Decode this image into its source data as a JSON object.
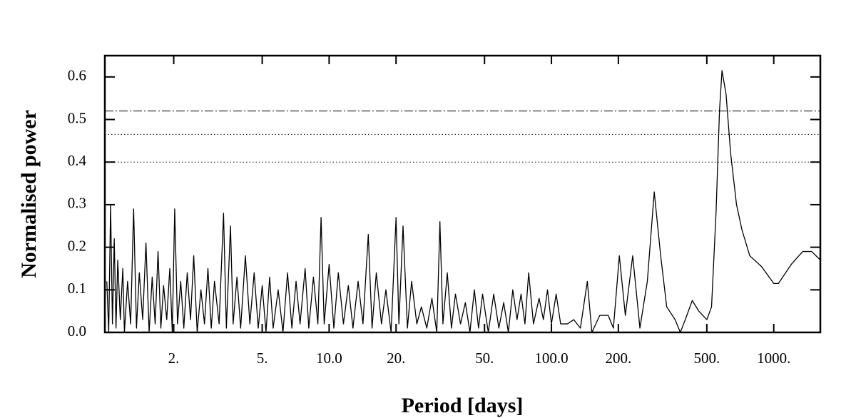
{
  "chart_data": {
    "type": "line",
    "x_label": "Period [days]",
    "y_label": "Normalised power",
    "log_x": true,
    "xlim": [
      0.98,
      1620
    ],
    "ylim": [
      0,
      0.65
    ],
    "xticks": [
      {
        "value": 2,
        "label": "2."
      },
      {
        "value": 5,
        "label": "5."
      },
      {
        "value": 10,
        "label": "10.0"
      },
      {
        "value": 20,
        "label": "20."
      },
      {
        "value": 50,
        "label": "50."
      },
      {
        "value": 100,
        "label": "100.0"
      },
      {
        "value": 200,
        "label": "200."
      },
      {
        "value": 500,
        "label": "500."
      },
      {
        "value": 1000,
        "label": "1000."
      }
    ],
    "yticks": [
      {
        "value": 0,
        "label": "0.0"
      },
      0.1,
      0.2,
      0.3,
      0.4,
      0.5,
      0.6
    ],
    "reference_lines": [
      {
        "value": 0.52,
        "style": "dashdot"
      },
      {
        "value": 0.465,
        "style": "dotted"
      },
      {
        "value": 0.4,
        "style": "dotted"
      }
    ],
    "color": "#000000",
    "x": [
      1.0,
      1.02,
      1.04,
      1.06,
      1.08,
      1.1,
      1.12,
      1.15,
      1.18,
      1.2,
      1.24,
      1.28,
      1.32,
      1.36,
      1.4,
      1.45,
      1.5,
      1.55,
      1.6,
      1.65,
      1.7,
      1.75,
      1.8,
      1.86,
      1.92,
      1.97,
      2.02,
      2.08,
      2.15,
      2.22,
      2.3,
      2.38,
      2.46,
      2.55,
      2.65,
      2.75,
      2.85,
      2.95,
      3.05,
      3.2,
      3.35,
      3.45,
      3.6,
      3.7,
      3.85,
      4.0,
      4.2,
      4.4,
      4.6,
      4.8,
      5.0,
      5.2,
      5.4,
      5.6,
      5.9,
      6.2,
      6.5,
      6.8,
      7.1,
      7.4,
      7.8,
      8.1,
      8.5,
      8.9,
      9.2,
      9.5,
      10.0,
      10.5,
      11.0,
      11.6,
      12.2,
      12.8,
      13.5,
      14.2,
      15.0,
      15.6,
      16.3,
      17.2,
      18.0,
      19.0,
      20.0,
      20.6,
      21.5,
      22.5,
      23.5,
      24.8,
      26.0,
      27.5,
      29.0,
      30.5,
      31.5,
      32.5,
      34.0,
      35.5,
      37.0,
      39.0,
      41.0,
      43.0,
      45.0,
      47.0,
      49,
      52,
      55,
      58,
      61,
      64,
      67,
      70,
      73,
      76,
      79,
      83,
      88,
      92,
      96,
      100,
      105,
      110,
      118,
      126,
      135,
      145,
      152,
      165,
      180,
      190,
      202,
      215,
      232,
      250,
      270,
      290,
      310,
      330,
      360,
      380,
      400,
      430,
      460,
      500,
      525,
      550,
      570,
      585,
      610,
      640,
      680,
      720,
      780,
      880,
      1000,
      1050,
      1200,
      1350,
      1480,
      1620
    ],
    "values": [
      0.12,
      0.0,
      0.3,
      0.02,
      0.22,
      0.01,
      0.17,
      0.03,
      0.15,
      0.0,
      0.12,
      0.02,
      0.29,
      0.01,
      0.14,
      0.03,
      0.21,
      0.0,
      0.13,
      0.02,
      0.19,
      0.01,
      0.11,
      0.03,
      0.15,
      0.0,
      0.29,
      0.02,
      0.12,
      0.01,
      0.14,
      0.03,
      0.18,
      0.0,
      0.1,
      0.02,
      0.15,
      0.01,
      0.12,
      0.02,
      0.28,
      0.01,
      0.25,
      0.02,
      0.13,
      0.01,
      0.18,
      0.02,
      0.14,
      0.01,
      0.11,
      0.0,
      0.13,
      0.01,
      0.1,
      0.0,
      0.14,
      0.01,
      0.12,
      0.02,
      0.15,
      0.01,
      0.13,
      0.02,
      0.27,
      0.02,
      0.16,
      0.01,
      0.14,
      0.02,
      0.11,
      0.01,
      0.12,
      0.02,
      0.23,
      0.01,
      0.14,
      0.02,
      0.1,
      0.0,
      0.27,
      0.02,
      0.25,
      0.01,
      0.12,
      0.02,
      0.06,
      0.01,
      0.08,
      0.0,
      0.26,
      0.02,
      0.14,
      0.01,
      0.09,
      0.02,
      0.07,
      0.0,
      0.1,
      0.01,
      0.09,
      0.0,
      0.09,
      0.01,
      0.07,
      0.0,
      0.1,
      0.03,
      0.09,
      0.02,
      0.14,
      0.02,
      0.08,
      0.03,
      0.1,
      0.02,
      0.09,
      0.02,
      0.02,
      0.03,
      0.01,
      0.12,
      0.0,
      0.04,
      0.04,
      0.01,
      0.18,
      0.04,
      0.18,
      0.01,
      0.12,
      0.33,
      0.18,
      0.06,
      0.03,
      0.0,
      0.03,
      0.075,
      0.05,
      0.03,
      0.06,
      0.28,
      0.52,
      0.615,
      0.56,
      0.42,
      0.3,
      0.24,
      0.18,
      0.155,
      0.115,
      0.115,
      0.16,
      0.19,
      0.19,
      0.17
    ]
  }
}
